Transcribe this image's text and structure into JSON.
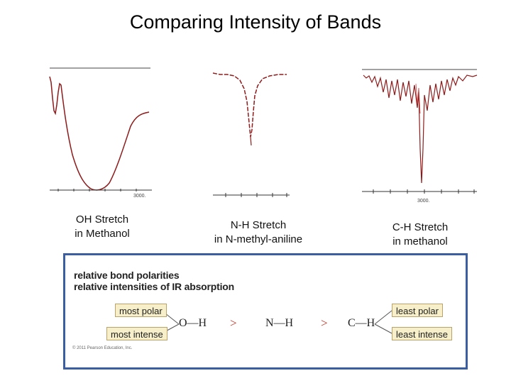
{
  "title": "Comparing Intensity of Bands",
  "spectra": [
    {
      "axis_tick_label": "3000."
    },
    {
      "axis_tick_label": ""
    },
    {
      "axis_tick_label": "3000."
    }
  ],
  "captions": [
    {
      "line1": "OH Stretch",
      "line2": "in Methanol"
    },
    {
      "line1": "N-H Stretch",
      "line2": "in N-methyl-aniline"
    },
    {
      "line1": "C-H Stretch",
      "line2": "in methanol"
    }
  ],
  "figure": {
    "heading1": "relative bond polarities",
    "heading2": "relative intensities of IR absorption",
    "left_top": "most polar",
    "left_bottom": "most intense",
    "right_top": "least polar",
    "right_bottom": "least intense",
    "bond1": "O—H",
    "bond2": "N—H",
    "bond3": "C—H",
    "gt1": ">",
    "gt2": ">",
    "copyright": "© 2011 Pearson Education, Inc."
  },
  "colors": {
    "trace": "#8e1b1b",
    "panel_border": "#3b5ea3",
    "label_box": "#f6efc9",
    "greater_than": "#c0392b"
  }
}
